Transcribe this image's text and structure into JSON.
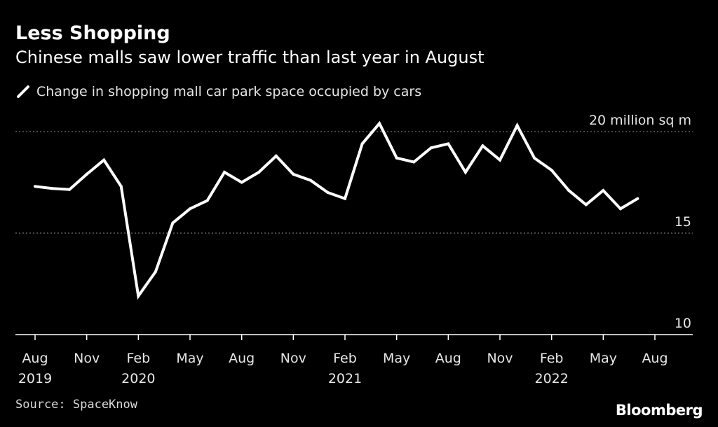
{
  "header": {
    "title": "Less Shopping",
    "subtitle": "Chinese malls saw lower traffic than last year in August"
  },
  "legend": {
    "label": "Change in shopping mall car park space occupied by cars"
  },
  "footer": {
    "source": "Source: SpaceKnow",
    "brand": "Bloomberg"
  },
  "colors": {
    "background": "#000000",
    "line": "#ffffff",
    "grid": "#8c8c8c",
    "text": "#e6e6e6"
  },
  "chart_data": {
    "type": "line",
    "title": "Less Shopping",
    "subtitle": "Chinese malls saw lower traffic than last year in August",
    "xlabel": "",
    "ylabel": "",
    "y_unit_label": "20 million sq m",
    "ylim": [
      10,
      20
    ],
    "yticks": [
      {
        "value": 20,
        "label": "20 million sq m"
      },
      {
        "value": 15,
        "label": "15"
      },
      {
        "value": 10,
        "label": "10"
      }
    ],
    "x_ticks": [
      {
        "index": 0,
        "label": "Aug",
        "year": "2019"
      },
      {
        "index": 3,
        "label": "Nov",
        "year": ""
      },
      {
        "index": 6,
        "label": "Feb",
        "year": "2020"
      },
      {
        "index": 9,
        "label": "May",
        "year": ""
      },
      {
        "index": 12,
        "label": "Aug",
        "year": ""
      },
      {
        "index": 15,
        "label": "Nov",
        "year": ""
      },
      {
        "index": 18,
        "label": "Feb",
        "year": "2021"
      },
      {
        "index": 21,
        "label": "May",
        "year": ""
      },
      {
        "index": 24,
        "label": "Aug",
        "year": ""
      },
      {
        "index": 27,
        "label": "Nov",
        "year": ""
      },
      {
        "index": 30,
        "label": "Feb",
        "year": "2022"
      },
      {
        "index": 33,
        "label": "May",
        "year": ""
      },
      {
        "index": 36,
        "label": "Aug",
        "year": ""
      }
    ],
    "series": [
      {
        "name": "Change in shopping mall car park space occupied by cars",
        "x": [
          "2019-08",
          "2019-09",
          "2019-10",
          "2019-11",
          "2019-12",
          "2020-01",
          "2020-02",
          "2020-03",
          "2020-04",
          "2020-05",
          "2020-06",
          "2020-07",
          "2020-08",
          "2020-09",
          "2020-10",
          "2020-11",
          "2020-12",
          "2021-01",
          "2021-02",
          "2021-03",
          "2021-04",
          "2021-05",
          "2021-06",
          "2021-07",
          "2021-08",
          "2021-09",
          "2021-10",
          "2021-11",
          "2021-12",
          "2022-01",
          "2022-02",
          "2022-03",
          "2022-04",
          "2022-05",
          "2022-06",
          "2022-07",
          "2022-08"
        ],
        "values": [
          17.3,
          17.2,
          17.15,
          17.9,
          18.6,
          17.3,
          11.9,
          13.1,
          15.5,
          16.2,
          16.6,
          18.0,
          17.5,
          18.0,
          18.8,
          17.9,
          17.6,
          17.0,
          16.7,
          19.4,
          20.4,
          18.7,
          18.5,
          19.2,
          19.4,
          18.0,
          19.3,
          18.6,
          20.3,
          18.7,
          18.1,
          17.1,
          16.4,
          17.1,
          16.2,
          16.7,
          null
        ]
      }
    ],
    "grid": true,
    "legend_position": "top-left"
  }
}
